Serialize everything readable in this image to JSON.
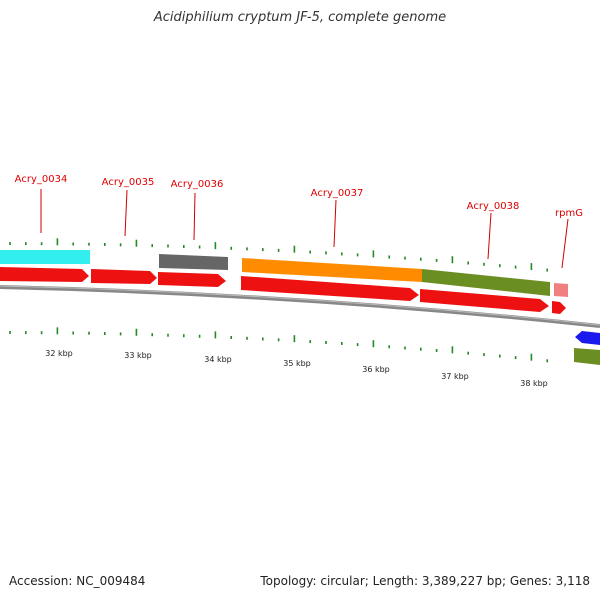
{
  "title": "Acidiphilium cryptum JF-5, complete genome",
  "footer": {
    "accession": "Accession: NC_009484",
    "summary": "Topology: circular; Length: 3,389,227 bp; Genes: 3,118"
  },
  "gene_labels": [
    "Acry_0034",
    "Acry_0035",
    "Acry_0036",
    "Acry_0037",
    "Acry_0038",
    "rpmG"
  ],
  "kbp_labels": [
    "32 kbp",
    "33 kbp",
    "34 kbp",
    "35 kbp",
    "36 kbp",
    "37 kbp",
    "38 kbp"
  ],
  "colors": {
    "gene_red": "#ee1111",
    "cyan": "#33eeee",
    "gray": "#666666",
    "orange": "#ff8c00",
    "olive": "#6b8e23",
    "pink": "#f08080",
    "blue": "#1a1aee",
    "backbone": "#888888",
    "tick_green": "#228b22",
    "label_red": "#dd0000"
  }
}
